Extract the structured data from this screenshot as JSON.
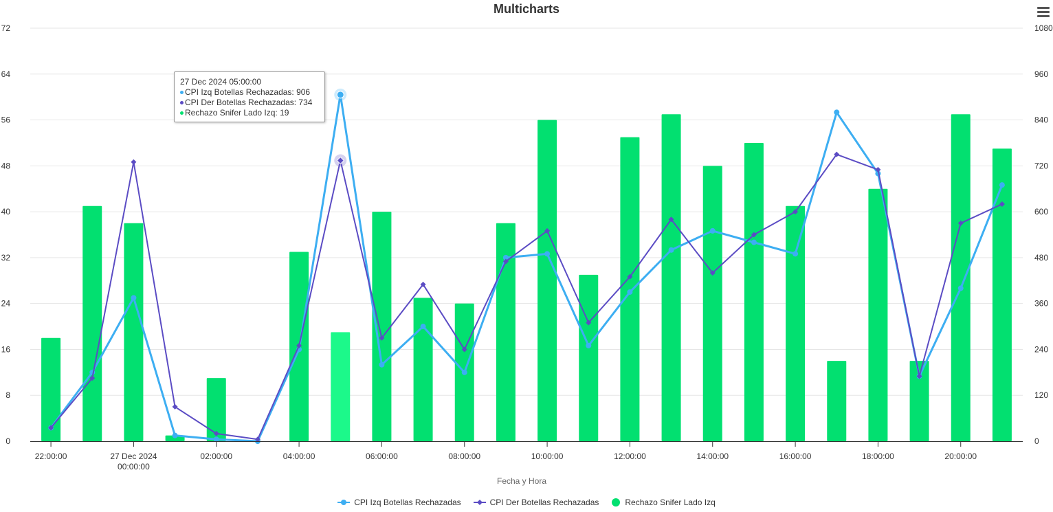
{
  "chart_data": {
    "type": "bar",
    "title": "Multicharts",
    "xlabel": "Fecha y Hora",
    "ylabel": "",
    "categories": [
      "26 Dec 2024 22:00:00",
      "26 Dec 2024 23:00:00",
      "27 Dec 2024 00:00:00",
      "27 Dec 2024 01:00:00",
      "27 Dec 2024 02:00:00",
      "27 Dec 2024 03:00:00",
      "27 Dec 2024 04:00:00",
      "27 Dec 2024 05:00:00",
      "27 Dec 2024 06:00:00",
      "27 Dec 2024 07:00:00",
      "27 Dec 2024 08:00:00",
      "27 Dec 2024 09:00:00",
      "27 Dec 2024 10:00:00",
      "27 Dec 2024 11:00:00",
      "27 Dec 2024 12:00:00",
      "27 Dec 2024 13:00:00",
      "27 Dec 2024 14:00:00",
      "27 Dec 2024 15:00:00",
      "27 Dec 2024 16:00:00",
      "27 Dec 2024 17:00:00",
      "27 Dec 2024 18:00:00",
      "27 Dec 2024 19:00:00",
      "27 Dec 2024 20:00:00",
      "27 Dec 2024 21:00:00"
    ],
    "x_tick_labels": [
      {
        "index": 0,
        "lines": [
          "22:00:00"
        ]
      },
      {
        "index": 2,
        "lines": [
          "27 Dec 2024",
          "00:00:00"
        ]
      },
      {
        "index": 4,
        "lines": [
          "02:00:00"
        ]
      },
      {
        "index": 6,
        "lines": [
          "04:00:00"
        ]
      },
      {
        "index": 8,
        "lines": [
          "06:00:00"
        ]
      },
      {
        "index": 10,
        "lines": [
          "08:00:00"
        ]
      },
      {
        "index": 12,
        "lines": [
          "10:00:00"
        ]
      },
      {
        "index": 14,
        "lines": [
          "12:00:00"
        ]
      },
      {
        "index": 16,
        "lines": [
          "14:00:00"
        ]
      },
      {
        "index": 18,
        "lines": [
          "16:00:00"
        ]
      },
      {
        "index": 20,
        "lines": [
          "18:00:00"
        ]
      },
      {
        "index": 22,
        "lines": [
          "20:00:00"
        ]
      }
    ],
    "y_left": {
      "min": 0,
      "max": 72,
      "ticks": [
        0,
        8,
        16,
        24,
        32,
        40,
        48,
        56,
        64,
        72
      ]
    },
    "y_right": {
      "min": 0,
      "max": 1080,
      "ticks": [
        0,
        120,
        240,
        360,
        480,
        600,
        720,
        840,
        960,
        1080
      ]
    },
    "grid": true,
    "legend_position": "bottom-center",
    "series": [
      {
        "name": "CPI Izq Botellas Rechazadas",
        "type": "line",
        "axis": "right",
        "color": "#3daef2",
        "marker": "circle",
        "values": [
          35,
          180,
          375,
          15,
          5,
          0,
          240,
          906,
          200,
          300,
          180,
          480,
          490,
          250,
          390,
          500,
          550,
          520,
          490,
          860,
          700,
          170,
          400,
          670
        ]
      },
      {
        "name": "CPI Der Botellas Rechazadas",
        "type": "line",
        "axis": "right",
        "color": "#5b4cc4",
        "marker": "diamond",
        "values": [
          35,
          165,
          730,
          90,
          20,
          5,
          250,
          734,
          270,
          410,
          240,
          470,
          550,
          310,
          430,
          580,
          440,
          540,
          600,
          750,
          710,
          170,
          570,
          620
        ]
      },
      {
        "name": "Rechazo Snifer Lado Izq",
        "type": "bar",
        "axis": "left",
        "color": "#02e070",
        "values": [
          18,
          41,
          38,
          1,
          11,
          0,
          33,
          19,
          40,
          25,
          24,
          38,
          56,
          29,
          53,
          57,
          48,
          52,
          41,
          14,
          44,
          14,
          57,
          51
        ]
      }
    ],
    "hover_index": 7,
    "hover_bar_color": "#1cf98a"
  },
  "tooltip": {
    "header": "27 Dec 2024 05:00:00",
    "lines": [
      {
        "text": "CPI Izq Botellas Rechazadas: 906",
        "color": "#3daef2"
      },
      {
        "text": "CPI Der Botellas Rechazadas: 734",
        "color": "#5b4cc4"
      },
      {
        "text": "Rechazo Snifer Lado Izq: 19",
        "color": "#02e070"
      }
    ]
  },
  "menu": {
    "icon": "hamburger-menu-icon"
  }
}
